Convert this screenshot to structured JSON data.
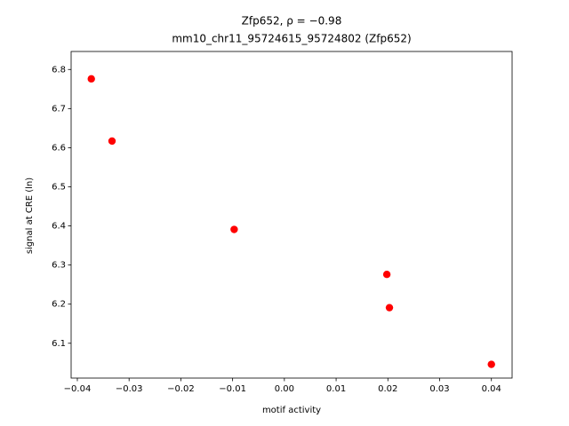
{
  "chart_data": {
    "type": "scatter",
    "title": "Zfp652, ρ = −0.98",
    "subtitle": "mm10_chr11_95724615_95724802 (Zfp652)",
    "x_label": "motif activity",
    "y_label": "signal at CRE (ln)",
    "color": "#ff0000",
    "x": [
      -0.0373,
      -0.0333,
      -0.0097,
      0.0198,
      0.0203,
      0.04
    ],
    "values": [
      6.776,
      6.617,
      6.391,
      6.276,
      6.191,
      6.046
    ],
    "xlim": [
      -0.0412,
      0.044
    ],
    "ylim": [
      6.011,
      6.846
    ],
    "xticks": [
      {
        "value": -0.04,
        "label": "−0.04"
      },
      {
        "value": -0.03,
        "label": "−0.03"
      },
      {
        "value": -0.02,
        "label": "−0.02"
      },
      {
        "value": -0.01,
        "label": "−0.01"
      },
      {
        "value": 0,
        "label": "0.00"
      },
      0.01,
      0.02,
      0.03,
      0.04
    ],
    "yticks": [
      6.1,
      6.2,
      6.3,
      6.4,
      6.5,
      6.6,
      6.7,
      6.8
    ],
    "grid": false
  }
}
